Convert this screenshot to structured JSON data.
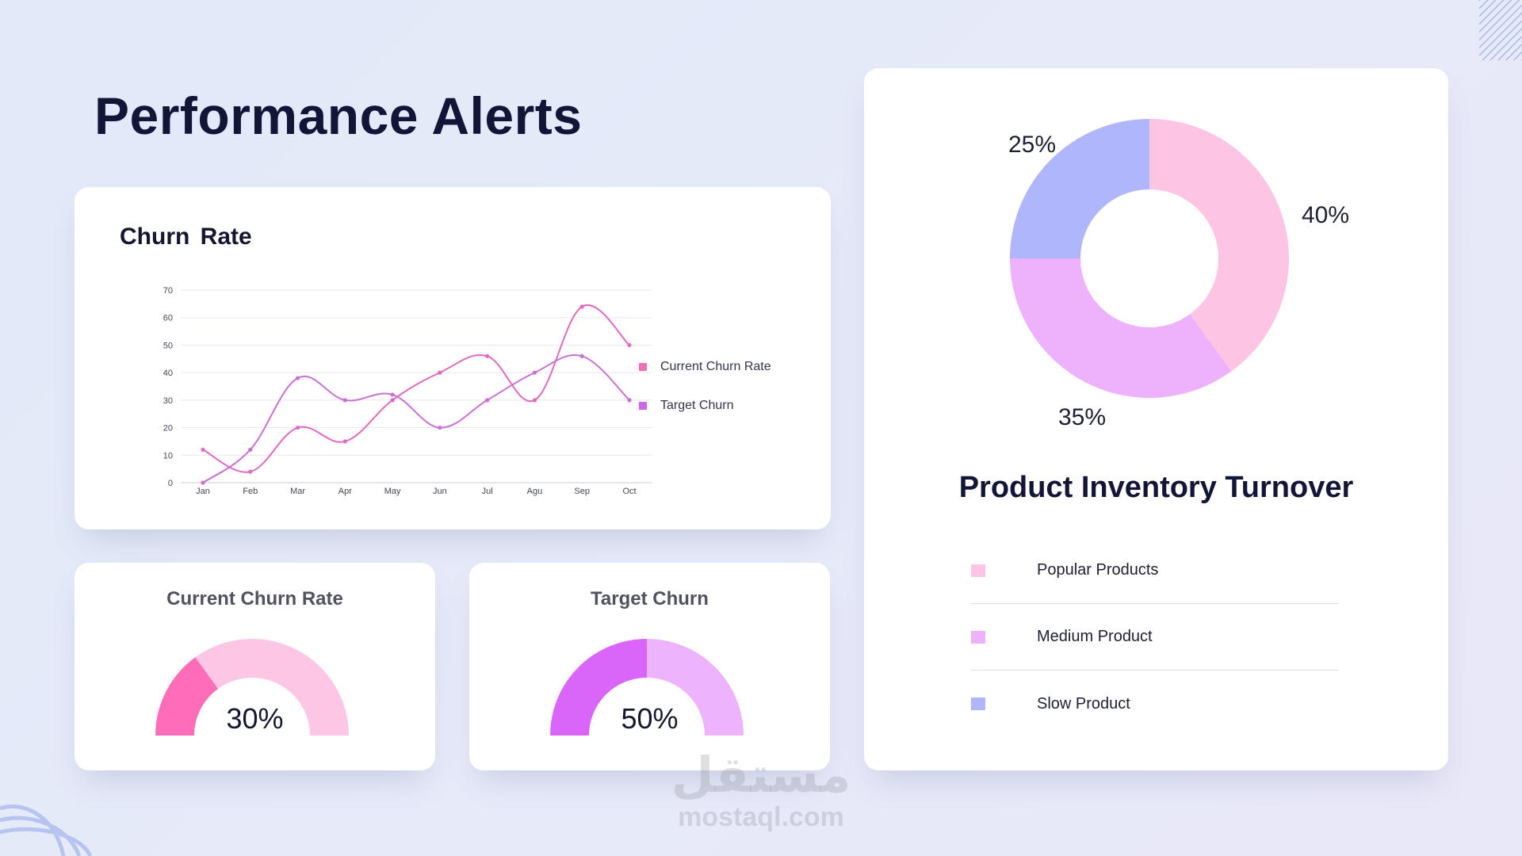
{
  "page": {
    "title": "Performance Alerts"
  },
  "churn_card": {
    "title": "Churn  Rate"
  },
  "chart_data": [
    {
      "type": "line",
      "title": "Churn  Rate",
      "categories": [
        "Jan",
        "Feb",
        "Mar",
        "Apr",
        "May",
        "Jun",
        "Jul",
        "Agu",
        "Sep",
        "Oct"
      ],
      "ylim": [
        0,
        70
      ],
      "yticks": [
        0,
        10,
        20,
        30,
        40,
        50,
        60,
        70
      ],
      "grid": true,
      "legend_position": "right",
      "series": [
        {
          "name": "Current Churn Rate",
          "color": "#e06ac0",
          "values": [
            12,
            4,
            20,
            15,
            30,
            40,
            46,
            30,
            64,
            50
          ]
        },
        {
          "name": "Target Churn",
          "color": "#c96fd6",
          "values": [
            0,
            12,
            38,
            30,
            32,
            20,
            30,
            40,
            46,
            30
          ]
        }
      ],
      "legend": [
        {
          "label": "Current Churn Rate",
          "color": "#f06eb6"
        },
        {
          "label": "Target Churn",
          "color": "#cc66e8"
        }
      ]
    },
    {
      "type": "pie",
      "title": "Product Inventory Turnover",
      "donut": true,
      "slices": [
        {
          "name": "Popular Products",
          "value": 40,
          "label": "40%",
          "color": "#fec4e3"
        },
        {
          "name": "Medium Product",
          "value": 35,
          "label": "35%",
          "color": "#eeb2fd"
        },
        {
          "name": "Slow Product",
          "value": 25,
          "label": "25%",
          "color": "#afb6fc"
        }
      ]
    }
  ],
  "gauges": {
    "current": {
      "title": "Current Churn Rate",
      "value": 30,
      "label": "30%",
      "fill_color": "#ff6db8",
      "track_color": "#fec6e5"
    },
    "target": {
      "title": "Target Churn",
      "value": 50,
      "label": "50%",
      "fill_color": "#d966f8",
      "track_color": "#eeb3fd"
    }
  },
  "watermark": {
    "arabic": "مستقل",
    "latin": "mostaql.com"
  }
}
